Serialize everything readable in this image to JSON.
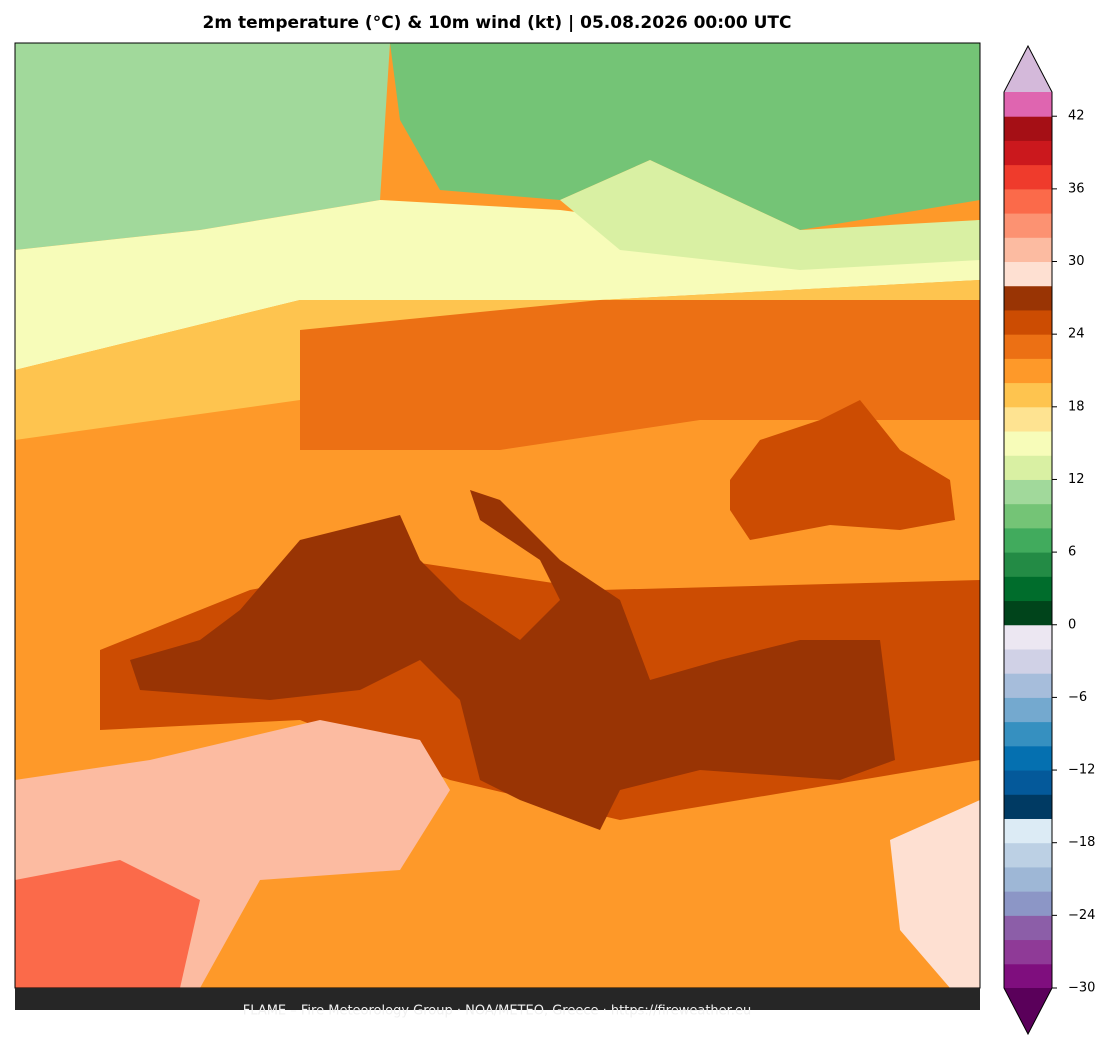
{
  "title": "2m temperature (°C) & 10m wind (kt)  |  05.08.2026 00:00 UTC",
  "footer": "FLAME – Fire Meteorology Group · NOA/METEO, Greece · https://fireweather.eu",
  "colorbar": {
    "lim": [
      -30,
      44
    ],
    "ticks": [
      {
        "value": -30,
        "label": "−30"
      },
      {
        "value": -24,
        "label": "−24"
      },
      {
        "value": -18,
        "label": "−18"
      },
      {
        "value": -12,
        "label": "−12"
      },
      {
        "value": -6,
        "label": "−6"
      },
      0,
      6,
      12,
      18,
      24,
      30,
      36,
      42
    ],
    "colors": [
      "#7f0e7e",
      "#8f3a97",
      "#8c5ea8",
      "#8c96c6",
      "#9eb7d6",
      "#bcd0e4",
      "#dcebf5",
      "#003a63",
      "#04599a",
      "#0570b0",
      "#3690c0",
      "#74a9cf",
      "#a6bddb",
      "#d0d1e6",
      "#ece7f2",
      "#00441b",
      "#006d2c",
      "#238b45",
      "#41ab5d",
      "#74c476",
      "#a1d99b",
      "#d9f0a3",
      "#f7fcb9",
      "#fee391",
      "#fec44f",
      "#fe9929",
      "#ec7014",
      "#cc4c02",
      "#993404",
      "#fee0d2",
      "#fcbba1",
      "#fc9272",
      "#fb6a4a",
      "#ef3b2c",
      "#cb181d",
      "#a50f15",
      "#df65b0"
    ],
    "under_color": "#5a005a",
    "over_color": "#d4b9da"
  }
}
